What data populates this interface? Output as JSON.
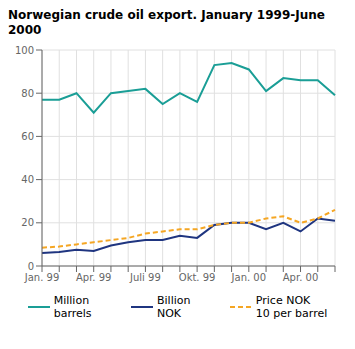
{
  "chart_data": {
    "type": "line",
    "title": "Norwegian crude oil export. January 1999-June 2000",
    "categories": [
      "Jan. 99",
      null,
      null,
      "Apr. 99",
      null,
      null,
      "Juli 99",
      null,
      null,
      "Okt. 99",
      null,
      null,
      "Jan. 00",
      null,
      null,
      "Apr. 00",
      null,
      null
    ],
    "series": [
      {
        "name": "Million\nbarrels",
        "color": "#1a9e96",
        "line_style": "solid",
        "values": [
          77,
          77,
          80,
          71,
          80,
          81,
          82,
          75,
          80,
          76,
          93,
          94,
          91,
          81,
          87,
          86,
          86,
          79
        ]
      },
      {
        "name": "Billion\nNOK",
        "color": "#1f3580",
        "line_style": "solid",
        "values": [
          6,
          6.5,
          7.5,
          7,
          9.5,
          11,
          12,
          12,
          14,
          13,
          19,
          20,
          20,
          17,
          20,
          16,
          22,
          21
        ]
      },
      {
        "name": "Price NOK\n10 per barrel",
        "color": "#f5a623",
        "line_style": "dashed",
        "values": [
          8.5,
          9,
          10,
          11,
          12,
          13,
          15,
          16,
          17,
          17,
          19,
          20,
          20,
          22,
          23,
          20,
          22,
          26
        ]
      }
    ],
    "ylim": [
      0,
      100
    ],
    "yticks": [
      0,
      20,
      40,
      60,
      80,
      100
    ],
    "grid": true,
    "legend": "bottom"
  }
}
